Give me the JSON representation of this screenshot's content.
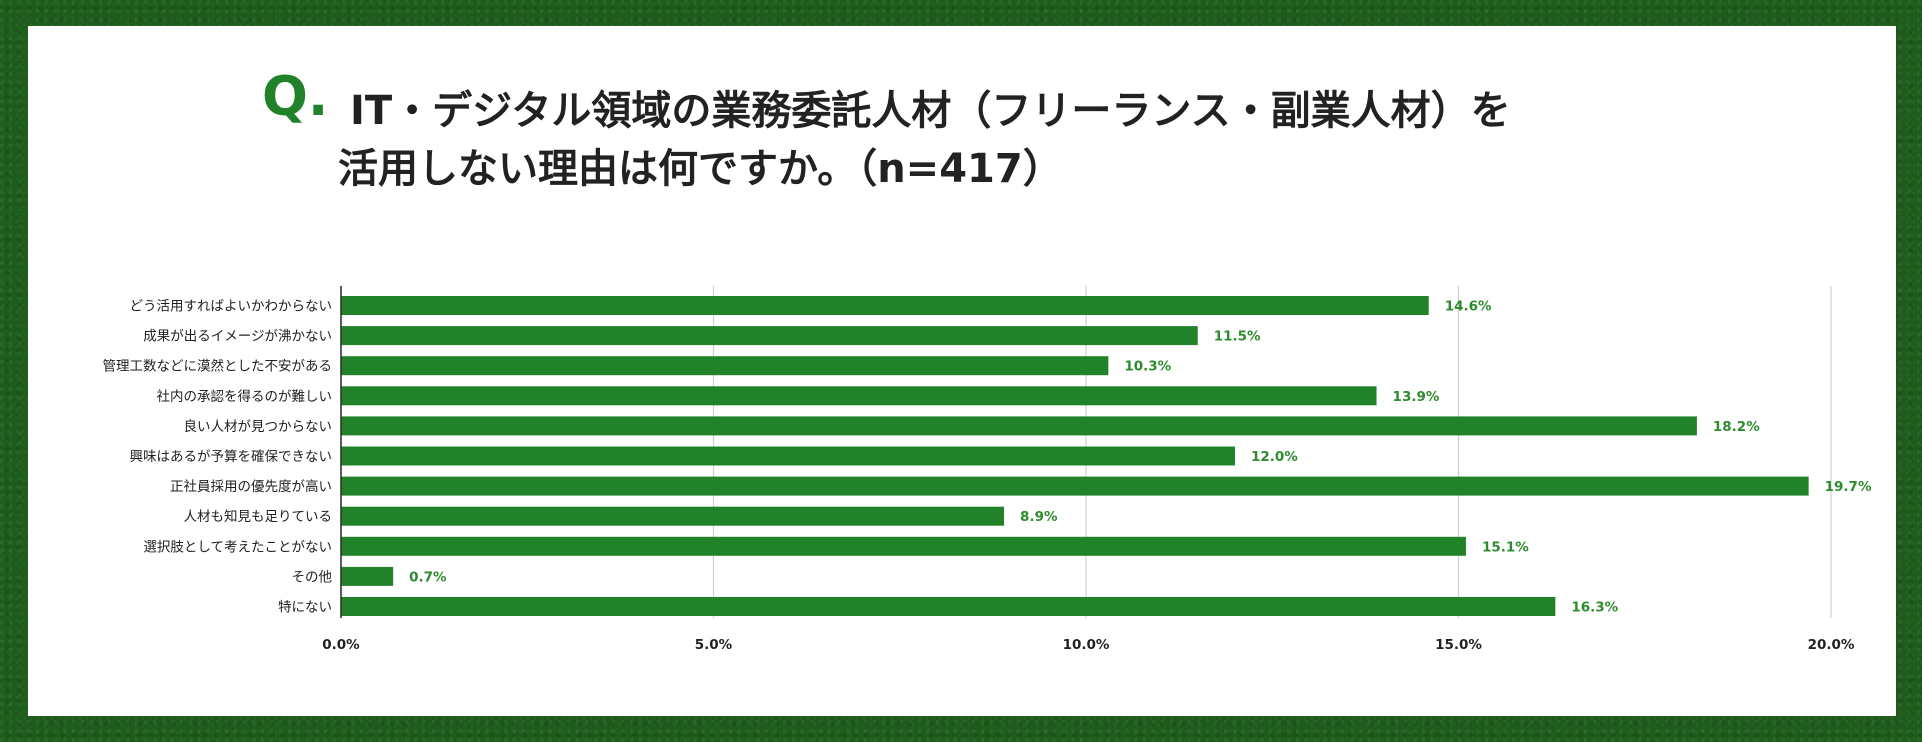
{
  "header": {
    "q_mark": "Q.",
    "title_line1": "IT・デジタル領域の業務委託人材（フリーランス・副業人材）を",
    "title_line2": "活用しない理由は何ですか。（n=417）"
  },
  "colors": {
    "bar": "#22822a",
    "value_label": "#2e8b2e",
    "frame": "#1e5c1c",
    "card": "#ffffff"
  },
  "chart_data": {
    "type": "bar",
    "orientation": "horizontal",
    "categories": [
      "どう活用すればよいかわからない",
      "成果が出るイメージが沸かない",
      "管理工数などに漠然とした不安がある",
      "社内の承認を得るのが難しい",
      "良い人材が見つからない",
      "興味はあるが予算を確保できない",
      "正社員採用の優先度が高い",
      "人材も知見も足りている",
      "選択肢として考えたことがない",
      "その他",
      "特にない"
    ],
    "values": [
      14.6,
      11.5,
      10.3,
      13.9,
      18.2,
      12.0,
      19.7,
      8.9,
      15.1,
      0.7,
      16.3
    ],
    "value_labels": [
      "14.6%",
      "11.5%",
      "10.3%",
      "13.9%",
      "18.2%",
      "12.0%",
      "19.7%",
      "8.9%",
      "15.1%",
      "0.7%",
      "16.3%"
    ],
    "xlim": [
      0,
      20
    ],
    "xticks": [
      0,
      5,
      10,
      15,
      20
    ],
    "xtick_labels": [
      "0.0%",
      "5.0%",
      "10.0%",
      "15.0%",
      "20.0%"
    ],
    "grid": true
  }
}
